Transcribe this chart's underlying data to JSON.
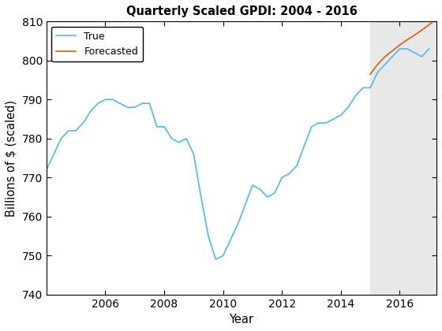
{
  "title": "Quarterly Scaled GPDI: 2004 - 2016",
  "xlabel": "Year",
  "ylabel": "Billions of $ (scaled)",
  "xlim": [
    2004.0,
    2017.25
  ],
  "ylim": [
    740,
    810
  ],
  "yticks": [
    740,
    750,
    760,
    770,
    780,
    790,
    800,
    810
  ],
  "xticks": [
    2006,
    2008,
    2010,
    2012,
    2014,
    2016
  ],
  "shade_start": 2015.0,
  "shade_end": 2017.25,
  "shade_color": "#e8e8e8",
  "true_color": "#4db8ff",
  "forecast_color": "#d95f02",
  "true_linewidth": 1.2,
  "forecast_linewidth": 1.2,
  "legend_labels": [
    "True",
    "Forecasted"
  ],
  "true_x": [
    2004.0,
    2004.25,
    2004.5,
    2004.75,
    2005.0,
    2005.25,
    2005.5,
    2005.75,
    2006.0,
    2006.25,
    2006.5,
    2006.75,
    2007.0,
    2007.25,
    2007.5,
    2007.75,
    2008.0,
    2008.25,
    2008.5,
    2008.75,
    2009.0,
    2009.25,
    2009.5,
    2009.75,
    2010.0,
    2010.25,
    2010.5,
    2010.75,
    2011.0,
    2011.25,
    2011.5,
    2011.75,
    2012.0,
    2012.25,
    2012.5,
    2012.75,
    2013.0,
    2013.25,
    2013.5,
    2013.75,
    2014.0,
    2014.25,
    2014.5,
    2014.75,
    2015.0,
    2015.25,
    2015.5,
    2015.75,
    2016.0,
    2016.25,
    2016.5,
    2016.75,
    2017.0
  ],
  "true_y": [
    772,
    776,
    780,
    782,
    782,
    784,
    787,
    789,
    790,
    790,
    789,
    788,
    788,
    789,
    789,
    783,
    783,
    780,
    779,
    780,
    776,
    765,
    755,
    749,
    750,
    754,
    758,
    763,
    768,
    767,
    765,
    766,
    770,
    771,
    773,
    778,
    783,
    784,
    784,
    785,
    786,
    788,
    791,
    793,
    793,
    797,
    799,
    801,
    803,
    803,
    802,
    801,
    803
  ],
  "forecast_x": [
    2015.0,
    2015.1,
    2015.25,
    2015.5,
    2015.75,
    2016.0,
    2016.25,
    2016.5,
    2016.75,
    2017.0,
    2017.1
  ],
  "forecast_y": [
    796.5,
    797.5,
    799.0,
    801.0,
    802.5,
    804.0,
    805.3,
    806.5,
    807.8,
    809.2,
    809.8
  ]
}
